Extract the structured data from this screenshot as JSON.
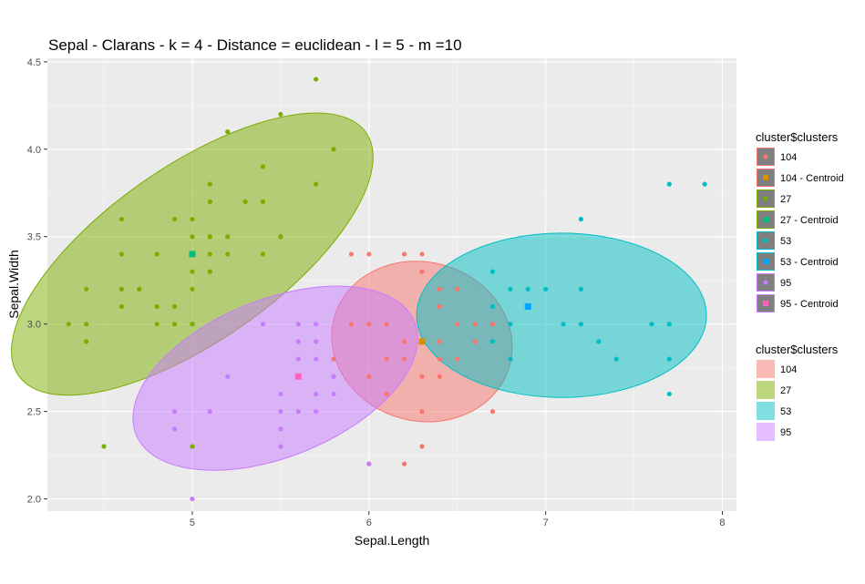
{
  "chart_data": {
    "type": "scatter",
    "title": "Sepal - Clarans - k = 4 - Distance = euclidean - l = 5 - m =10",
    "xlabel": "Sepal.Length",
    "ylabel": "Sepal.Width",
    "xlim": [
      4.18,
      8.08
    ],
    "ylim": [
      1.93,
      4.52
    ],
    "x_ticks": [
      "5",
      "6",
      "7",
      "8"
    ],
    "y_ticks": [
      "2.0",
      "2.5",
      "3.0",
      "3.5",
      "4.0",
      "4.5"
    ],
    "grid": true,
    "legend_position": "right",
    "colors": {
      "104": "#F8766D",
      "27": "#7CAE00",
      "53": "#00BFC4",
      "95": "#C77CFF"
    },
    "series": [
      {
        "name": "104",
        "color": "#F8766D",
        "points": [
          [
            5.9,
            3.4
          ],
          [
            6.2,
            3.4
          ],
          [
            6.3,
            3.3
          ],
          [
            6.4,
            3.2
          ],
          [
            6.1,
            3.0
          ],
          [
            6.0,
            3.0
          ],
          [
            6.1,
            2.8
          ],
          [
            6.3,
            2.9
          ],
          [
            6.2,
            2.9
          ],
          [
            5.8,
            2.7
          ],
          [
            5.9,
            3.0
          ],
          [
            6.0,
            3.4
          ],
          [
            6.3,
            2.5
          ],
          [
            6.5,
            2.8
          ],
          [
            6.4,
            2.8
          ],
          [
            6.7,
            2.5
          ],
          [
            6.4,
            2.7
          ],
          [
            6.3,
            2.7
          ],
          [
            6.0,
            2.7
          ],
          [
            6.1,
            2.6
          ],
          [
            5.8,
            2.8
          ],
          [
            6.0,
            2.2
          ],
          [
            6.2,
            2.2
          ],
          [
            6.3,
            2.3
          ],
          [
            6.4,
            3.1
          ],
          [
            6.3,
            3.4
          ],
          [
            6.5,
            3.0
          ],
          [
            6.5,
            3.2
          ],
          [
            6.6,
            3.0
          ],
          [
            6.6,
            2.9
          ],
          [
            6.8,
            2.8
          ],
          [
            6.2,
            2.8
          ],
          [
            6.4,
            2.9
          ],
          [
            6.7,
            3.0
          ]
        ]
      },
      {
        "name": "27",
        "color": "#7CAE00",
        "points": [
          [
            5.1,
            3.5
          ],
          [
            4.9,
            3.0
          ],
          [
            4.7,
            3.2
          ],
          [
            4.6,
            3.1
          ],
          [
            5.0,
            3.6
          ],
          [
            5.4,
            3.9
          ],
          [
            4.6,
            3.4
          ],
          [
            5.0,
            3.4
          ],
          [
            4.4,
            2.9
          ],
          [
            4.9,
            3.1
          ],
          [
            5.4,
            3.7
          ],
          [
            4.8,
            3.4
          ],
          [
            4.8,
            3.0
          ],
          [
            4.3,
            3.0
          ],
          [
            5.8,
            4.0
          ],
          [
            5.7,
            4.4
          ],
          [
            5.1,
            3.8
          ],
          [
            5.7,
            3.8
          ],
          [
            5.2,
            4.1
          ],
          [
            5.5,
            4.2
          ],
          [
            5.0,
            3.2
          ],
          [
            5.5,
            3.5
          ],
          [
            4.4,
            3.2
          ],
          [
            5.1,
            3.4
          ],
          [
            5.0,
            3.5
          ],
          [
            4.4,
            3.0
          ],
          [
            5.3,
            3.7
          ],
          [
            5.0,
            3.3
          ],
          [
            5.4,
            3.4
          ],
          [
            4.8,
            3.1
          ],
          [
            5.2,
            3.5
          ],
          [
            5.2,
            3.4
          ],
          [
            4.9,
            3.6
          ],
          [
            5.1,
            3.3
          ],
          [
            4.6,
            3.2
          ],
          [
            5.1,
            3.7
          ],
          [
            4.6,
            3.6
          ],
          [
            5.0,
            3.0
          ],
          [
            5.1,
            3.5
          ],
          [
            5.0,
            3.0
          ],
          [
            5.5,
            3.5
          ],
          [
            4.7,
            3.2
          ],
          [
            4.5,
            2.3
          ],
          [
            5.0,
            2.3
          ]
        ]
      },
      {
        "name": "53",
        "color": "#00BFC4",
        "points": [
          [
            7.0,
            3.2
          ],
          [
            6.9,
            3.1
          ],
          [
            6.7,
            3.1
          ],
          [
            6.8,
            3.2
          ],
          [
            7.1,
            3.0
          ],
          [
            7.6,
            3.0
          ],
          [
            7.3,
            2.9
          ],
          [
            7.2,
            3.6
          ],
          [
            7.7,
            3.8
          ],
          [
            7.7,
            2.6
          ],
          [
            7.7,
            2.8
          ],
          [
            7.2,
            3.2
          ],
          [
            7.2,
            3.0
          ],
          [
            7.4,
            2.8
          ],
          [
            7.9,
            3.8
          ],
          [
            7.7,
            3.0
          ],
          [
            6.9,
            3.2
          ],
          [
            6.7,
            3.3
          ],
          [
            6.8,
            3.0
          ],
          [
            6.7,
            2.9
          ],
          [
            6.9,
            3.1
          ],
          [
            6.7,
            3.1
          ],
          [
            6.8,
            2.8
          ]
        ]
      },
      {
        "name": "95",
        "color": "#C77CFF",
        "points": [
          [
            4.9,
            2.5
          ],
          [
            5.0,
            2.0
          ],
          [
            5.5,
            2.4
          ],
          [
            5.6,
            2.7
          ],
          [
            5.4,
            3.0
          ],
          [
            5.6,
            3.0
          ],
          [
            5.7,
            2.8
          ],
          [
            5.2,
            2.7
          ],
          [
            5.6,
            2.9
          ],
          [
            5.7,
            2.9
          ],
          [
            5.6,
            2.5
          ],
          [
            5.5,
            2.5
          ],
          [
            5.5,
            2.6
          ],
          [
            5.7,
            2.6
          ],
          [
            5.8,
            2.6
          ],
          [
            5.5,
            2.3
          ],
          [
            5.7,
            3.0
          ],
          [
            5.1,
            2.5
          ],
          [
            4.9,
            2.4
          ],
          [
            5.5,
            2.4
          ],
          [
            5.6,
            2.8
          ],
          [
            5.8,
            2.7
          ],
          [
            5.7,
            2.5
          ],
          [
            6.0,
            2.2
          ],
          [
            5.8,
            2.7
          ]
        ]
      }
    ],
    "centroids": [
      {
        "name": "104 - Centroid",
        "color": "#D89000",
        "x": 6.3,
        "y": 2.9
      },
      {
        "name": "27 - Centroid",
        "color": "#00BF7D",
        "x": 5.0,
        "y": 3.4
      },
      {
        "name": "53 - Centroid",
        "color": "#00A5FF",
        "x": 6.9,
        "y": 3.1
      },
      {
        "name": "95 - Centroid",
        "color": "#FF62BC",
        "x": 5.6,
        "y": 2.7
      }
    ],
    "ellipses": [
      {
        "name": "104",
        "fill": "#F8766D",
        "cx": 6.3,
        "cy": 2.9,
        "rx": 0.45,
        "ry": 0.52,
        "angle": 75
      },
      {
        "name": "27",
        "fill": "#7CAE00",
        "cx": 5.0,
        "cy": 3.4,
        "rx": 1.2,
        "ry": 0.5,
        "angle": 35
      },
      {
        "name": "53",
        "fill": "#00BFC4",
        "cx": 7.09,
        "cy": 3.05,
        "rx": 0.82,
        "ry": 0.47,
        "angle": 0
      },
      {
        "name": "95",
        "fill": "#C77CFF",
        "cx": 5.47,
        "cy": 2.69,
        "rx": 0.85,
        "ry": 0.45,
        "angle": 22
      }
    ],
    "legend_points": {
      "title": "cluster$clusters",
      "entries": [
        {
          "label": "104",
          "color": "#F8766D",
          "shape": "circle"
        },
        {
          "label": "104 - Centroid",
          "color": "#D89000",
          "shape": "square"
        },
        {
          "label": "27",
          "color": "#7CAE00",
          "shape": "circle"
        },
        {
          "label": "27 - Centroid",
          "color": "#00BF7D",
          "shape": "square"
        },
        {
          "label": "53",
          "color": "#00BFC4",
          "shape": "circle"
        },
        {
          "label": "53 - Centroid",
          "color": "#00A5FF",
          "shape": "square"
        },
        {
          "label": "95",
          "color": "#C77CFF",
          "shape": "circle"
        },
        {
          "label": "95 - Centroid",
          "color": "#FF62BC",
          "shape": "square"
        }
      ]
    },
    "legend_fill": {
      "title": "cluster$clusters",
      "entries": [
        {
          "label": "104",
          "color": "#F8766D"
        },
        {
          "label": "27",
          "color": "#7CAE00"
        },
        {
          "label": "53",
          "color": "#00BFC4"
        },
        {
          "label": "95",
          "color": "#C77CFF"
        }
      ]
    }
  }
}
